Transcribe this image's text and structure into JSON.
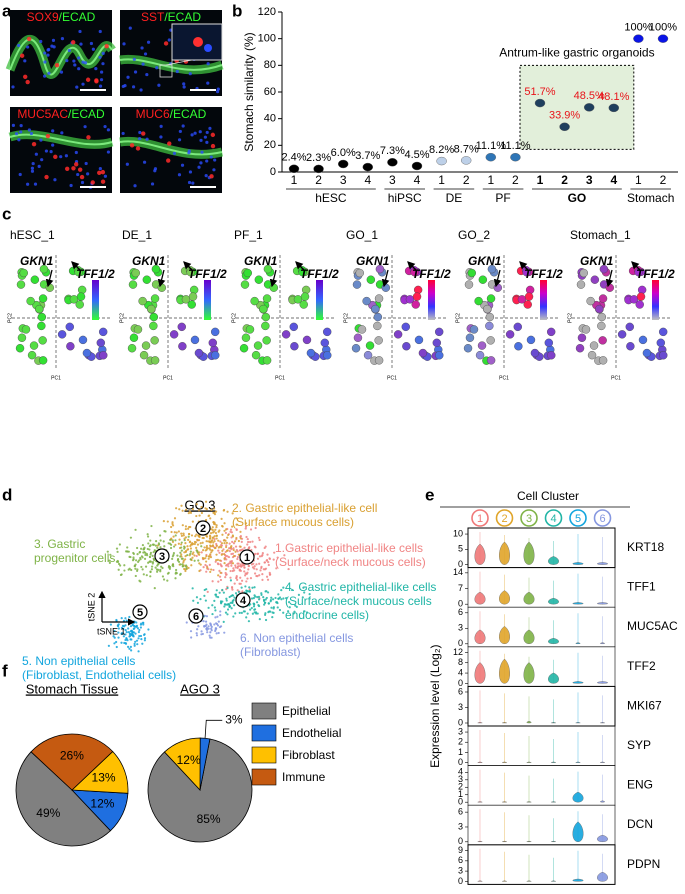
{
  "panels": {
    "a": {
      "label": "a",
      "images": [
        {
          "marker": "SOX9",
          "stain": "/ECAD"
        },
        {
          "marker": "SST",
          "stain": "/ECAD"
        },
        {
          "marker": "MUC5AC",
          "stain": "/ECAD"
        },
        {
          "marker": "MUC6",
          "stain": "/ECAD"
        }
      ]
    },
    "b": {
      "label": "b"
    },
    "c": {
      "label": "c",
      "gene1": "GKN1",
      "gene2": "TFF1/2",
      "xlabel": "PC1",
      "ylabel": "PC2",
      "plots": [
        {
          "title": "hESC_1"
        },
        {
          "title": "DE_1"
        },
        {
          "title": "PF_1"
        },
        {
          "title": "GO_1"
        },
        {
          "title": "GO_2"
        },
        {
          "title": "Stomach_1"
        }
      ]
    },
    "d": {
      "label": "d",
      "title": "GO 3",
      "xlabel": "tSNE 1",
      "ylabel": "tSNE 2",
      "clusters": [
        {
          "number": 1,
          "color": "#f08484",
          "lines": [
            "1.Gastric epithelial-like cells",
            "(Surface/neck mucous cells)"
          ]
        },
        {
          "number": 2,
          "color": "#d9a032",
          "lines": [
            "2. Gastric epithelial-like cell",
            "(Surface mucous cells)"
          ]
        },
        {
          "number": 3,
          "color": "#7fb347",
          "lines": [
            "3. Gastric",
            "progenitor cells"
          ]
        },
        {
          "number": 4,
          "color": "#1fb5a6",
          "lines": [
            "4. Gastric epithelial-like cells",
            "(Surface/neck mucous cells",
            "endocrine cells)"
          ]
        },
        {
          "number": 5,
          "color": "#12a5dd",
          "lines": [
            "5. Non epithelial cells",
            "(Fibroblast, Endothelial cells)"
          ]
        },
        {
          "number": 6,
          "color": "#8597e0",
          "lines": [
            "6. Non epithelial cells",
            "(Fibroblast)"
          ]
        }
      ]
    },
    "e": {
      "label": "e",
      "title": "Cell Cluster",
      "ylabel": "Expression level (Log₂)",
      "clusters": [
        1,
        2,
        3,
        4,
        5,
        6
      ],
      "colors": [
        "#f07878",
        "#e0a52a",
        "#7fb347",
        "#22b5a6",
        "#12a5dd",
        "#8597e0"
      ],
      "genes": [
        {
          "name": "KRT18",
          "ylim": [
            0,
            11
          ],
          "yticks": [
            0,
            5,
            10
          ],
          "levels": [
            5,
            5.5,
            5.5,
            2,
            0.5,
            0.5
          ]
        },
        {
          "name": "TFF1",
          "ylim": [
            0,
            15
          ],
          "yticks": [
            0,
            7,
            14
          ],
          "levels": [
            4,
            4.5,
            4,
            2,
            0.5,
            0.5
          ]
        },
        {
          "name": "MUC5AC",
          "ylim": [
            0,
            6.5
          ],
          "yticks": [
            0,
            3,
            6
          ],
          "levels": [
            2,
            2.5,
            2,
            0.8,
            0.1,
            0.1
          ]
        },
        {
          "name": "TFF2",
          "ylim": [
            0,
            13
          ],
          "yticks": [
            0,
            4,
            8,
            12
          ],
          "levels": [
            6,
            7,
            6,
            3,
            0.5,
            0.5
          ]
        },
        {
          "name": "MKI67",
          "ylim": [
            0,
            6.5
          ],
          "yticks": [
            0,
            3,
            6
          ],
          "levels": [
            0,
            0,
            0.2,
            0,
            0,
            0
          ]
        },
        {
          "name": "SYP",
          "ylim": [
            0,
            3.3
          ],
          "yticks": [
            0,
            1,
            2,
            3
          ],
          "levels": [
            0,
            0,
            0,
            0,
            0,
            0
          ]
        },
        {
          "name": "ENG",
          "ylim": [
            0,
            4.5
          ],
          "yticks": [
            0,
            1,
            2,
            3,
            4
          ],
          "levels": [
            0,
            0,
            0,
            0,
            1,
            0.1
          ]
        },
        {
          "name": "DCN",
          "ylim": [
            0,
            6.8
          ],
          "yticks": [
            0,
            3,
            6
          ],
          "levels": [
            0,
            0,
            0,
            0,
            3,
            1
          ]
        },
        {
          "name": "PDPN",
          "ylim": [
            0,
            9.8
          ],
          "yticks": [
            0,
            3,
            6,
            9
          ],
          "levels": [
            0,
            0,
            0,
            0,
            0.5,
            2
          ]
        }
      ]
    },
    "f": {
      "label": "f"
    }
  },
  "chart_data": [
    {
      "type": "dot",
      "ylabel": "Stomach similarity (%)",
      "ylim": [
        0,
        120
      ],
      "yticks": [
        0,
        20,
        40,
        60,
        80,
        100,
        120
      ],
      "annotation": "Antrum-like gastric organoids",
      "series": [
        {
          "name": "hESC",
          "categories": [
            1,
            2,
            3,
            4
          ],
          "values": [
            2.4,
            2.3,
            6.0,
            3.7
          ],
          "value_labels": [
            "2.4%",
            "2.3%",
            "6.0%",
            "3.7%"
          ],
          "color": "#000000",
          "label_color": "#000000"
        },
        {
          "name": "hiPSC",
          "categories": [
            3,
            4
          ],
          "values": [
            7.3,
            4.5
          ],
          "value_labels": [
            "7.3%",
            "4.5%"
          ],
          "color": "#000000",
          "label_color": "#000000"
        },
        {
          "name": "DE",
          "categories": [
            1,
            2
          ],
          "values": [
            8.2,
            8.7
          ],
          "value_labels": [
            "8.2%",
            "8.7%"
          ],
          "color": "#bdd0e8",
          "label_color": "#000000"
        },
        {
          "name": "PF",
          "categories": [
            1,
            2
          ],
          "values": [
            11.1,
            11.1
          ],
          "value_labels": [
            "11.1%",
            "11.1%"
          ],
          "color": "#2e75b6",
          "label_color": "#000000"
        },
        {
          "name": "GO",
          "bold": true,
          "categories": [
            1,
            2,
            3,
            4
          ],
          "values": [
            51.7,
            33.9,
            48.5,
            48.1
          ],
          "value_labels": [
            "51.7%",
            "33.9%",
            "48.5%",
            "48.1%"
          ],
          "color": "#1f3f5e",
          "label_color": "#e8141a"
        },
        {
          "name": "Stomach",
          "categories": [
            1,
            2
          ],
          "values": [
            100,
            100
          ],
          "value_labels": [
            "100%",
            "100%"
          ],
          "color": "#0a14e6",
          "label_color": "#000000"
        }
      ]
    },
    {
      "type": "pie",
      "title": "Stomach Tissue",
      "categories": [
        "Epithelial",
        "Endothelial",
        "Fibroblast",
        "Immune"
      ],
      "values": [
        49,
        12,
        13,
        26
      ],
      "value_labels": [
        "49%",
        "12%",
        "13%",
        "26%"
      ],
      "colors": [
        "#808080",
        "#1f6fe0",
        "#ffc000",
        "#c55a11"
      ]
    },
    {
      "type": "pie",
      "title": "AGO 3",
      "categories": [
        "Epithelial",
        "Endothelial",
        "Fibroblast"
      ],
      "values": [
        85,
        3,
        12
      ],
      "value_labels": [
        "85%",
        "3%",
        "12%"
      ],
      "colors": [
        "#808080",
        "#1f6fe0",
        "#ffc000"
      ]
    }
  ]
}
